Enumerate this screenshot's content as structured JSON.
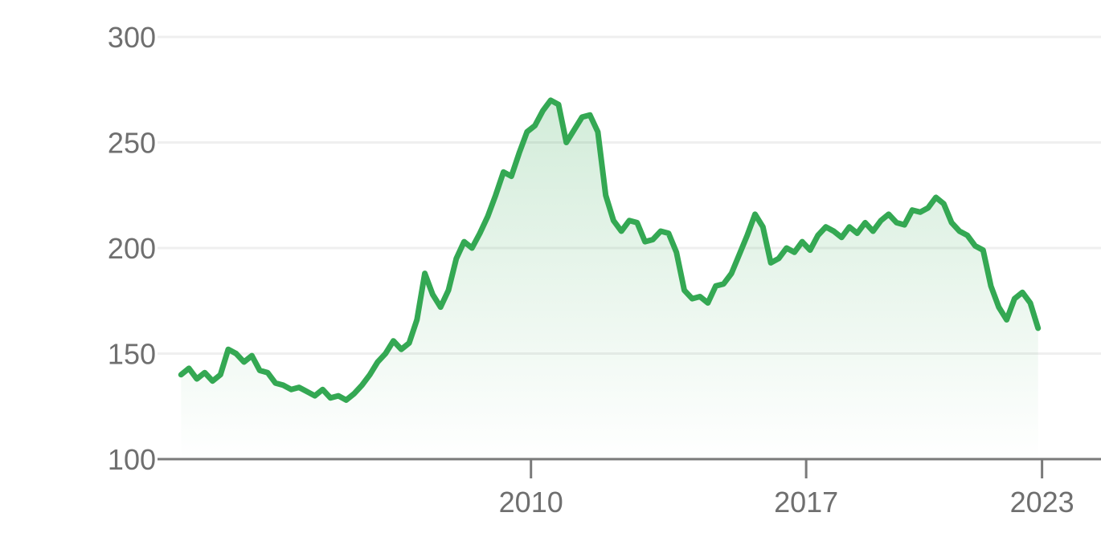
{
  "colors": {
    "line": "#34a853",
    "area_top": "#34a853",
    "grid": "#efefef",
    "axis": "#7a7a7a",
    "text": "#6f6f6f"
  },
  "chart_data": {
    "type": "area",
    "title": "",
    "xlabel": "",
    "ylabel": "",
    "grid": true,
    "legend": "none",
    "xlim": [
      2000.5,
      2024.5
    ],
    "ylim": [
      100,
      300
    ],
    "yticks": [
      100,
      150,
      200,
      250,
      300
    ],
    "xticks": [
      2010,
      2017,
      2023
    ],
    "series": [
      {
        "x": [
          2001.1,
          2001.3,
          2001.5,
          2001.7,
          2001.9,
          2002.1,
          2002.3,
          2002.5,
          2002.7,
          2002.9,
          2003.1,
          2003.3,
          2003.5,
          2003.7,
          2003.9,
          2004.1,
          2004.3,
          2004.5,
          2004.7,
          2004.9,
          2005.1,
          2005.3,
          2005.5,
          2005.7,
          2005.9,
          2006.1,
          2006.3,
          2006.5,
          2006.7,
          2006.9,
          2007.1,
          2007.3,
          2007.5,
          2007.7,
          2007.9,
          2008.1,
          2008.3,
          2008.5,
          2008.7,
          2008.9,
          2009.1,
          2009.3,
          2009.5,
          2009.7,
          2009.9,
          2010.1,
          2010.3,
          2010.5,
          2010.7,
          2010.9,
          2011.1,
          2011.3,
          2011.5,
          2011.7,
          2011.9,
          2012.1,
          2012.3,
          2012.5,
          2012.7,
          2012.9,
          2013.1,
          2013.3,
          2013.5,
          2013.7,
          2013.9,
          2014.1,
          2014.3,
          2014.5,
          2014.7,
          2014.9,
          2015.1,
          2015.3,
          2015.5,
          2015.7,
          2015.9,
          2016.1,
          2016.3,
          2016.5,
          2016.7,
          2016.9,
          2017.1,
          2017.3,
          2017.5,
          2017.7,
          2017.9,
          2018.1,
          2018.3,
          2018.5,
          2018.7,
          2018.9,
          2019.1,
          2019.3,
          2019.5,
          2019.7,
          2019.9,
          2020.1,
          2020.3,
          2020.5,
          2020.7,
          2020.9,
          2021.1,
          2021.3,
          2021.5,
          2021.7,
          2021.9,
          2022.1,
          2022.3,
          2022.5,
          2022.7,
          2022.9
        ],
        "y": [
          140,
          143,
          138,
          141,
          137,
          140,
          152,
          150,
          146,
          149,
          142,
          141,
          136,
          135,
          133,
          134,
          132,
          130,
          133,
          129,
          130,
          128,
          131,
          135,
          140,
          146,
          150,
          156,
          152,
          155,
          166,
          188,
          178,
          172,
          180,
          195,
          203,
          200,
          207,
          215,
          225,
          236,
          234,
          245,
          255,
          258,
          265,
          270,
          268,
          250,
          256,
          262,
          263,
          255,
          225,
          213,
          208,
          213,
          212,
          203,
          204,
          208,
          207,
          198,
          180,
          176,
          177,
          174,
          182,
          183,
          188,
          197,
          206,
          216,
          210,
          193,
          195,
          200,
          198,
          203,
          199,
          206,
          210,
          208,
          205,
          210,
          207,
          212,
          208,
          213,
          216,
          212,
          211,
          218,
          217,
          219,
          224,
          221,
          212,
          208,
          206,
          201,
          199,
          182,
          172,
          166,
          176,
          179,
          174,
          162
        ]
      }
    ]
  }
}
